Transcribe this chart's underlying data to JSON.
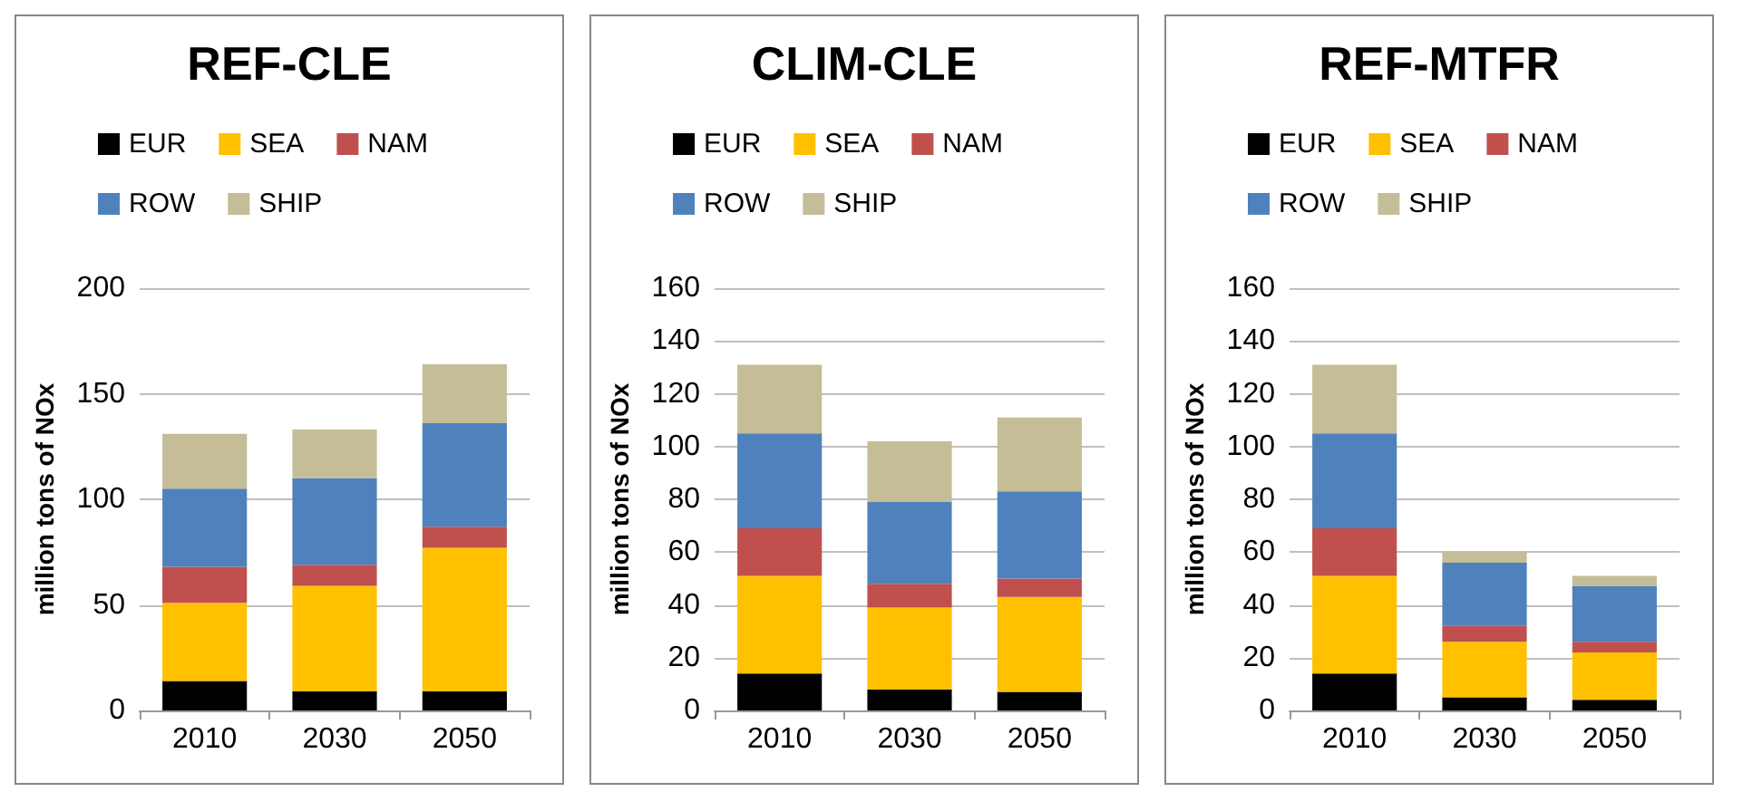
{
  "chart_data": [
    {
      "type": "bar",
      "title": "REF-CLE",
      "ylabel": "million tons of NOx",
      "categories": [
        "2010",
        "2030",
        "2050"
      ],
      "stacked": true,
      "ylim": [
        0,
        200
      ],
      "yticks": [
        0,
        50,
        100,
        150,
        200
      ],
      "grid": "y",
      "legend": "top",
      "series": [
        {
          "name": "EUR",
          "color": "#000000",
          "values": [
            14,
            9,
            9
          ]
        },
        {
          "name": "SEA",
          "color": "#ffc000",
          "values": [
            37,
            50,
            68
          ]
        },
        {
          "name": "NAM",
          "color": "#c0504d",
          "values": [
            17,
            10,
            10
          ]
        },
        {
          "name": "ROW",
          "color": "#4f81bd",
          "values": [
            37,
            41,
            49
          ]
        },
        {
          "name": "SHIP",
          "color": "#c4bd97",
          "values": [
            26,
            23,
            28
          ]
        }
      ]
    },
    {
      "type": "bar",
      "title": "CLIM-CLE",
      "ylabel": "million tons of NOx",
      "categories": [
        "2010",
        "2030",
        "2050"
      ],
      "stacked": true,
      "ylim": [
        0,
        160
      ],
      "yticks": [
        0,
        20,
        40,
        60,
        80,
        100,
        120,
        140,
        160
      ],
      "grid": "y",
      "legend": "top",
      "series": [
        {
          "name": "EUR",
          "color": "#000000",
          "values": [
            14,
            8,
            7
          ]
        },
        {
          "name": "SEA",
          "color": "#ffc000",
          "values": [
            37,
            31,
            36
          ]
        },
        {
          "name": "NAM",
          "color": "#c0504d",
          "values": [
            18,
            9,
            7
          ]
        },
        {
          "name": "ROW",
          "color": "#4f81bd",
          "values": [
            36,
            31,
            33
          ]
        },
        {
          "name": "SHIP",
          "color": "#c4bd97",
          "values": [
            26,
            23,
            28
          ]
        }
      ]
    },
    {
      "type": "bar",
      "title": "REF-MTFR",
      "ylabel": "million tons of NOx",
      "categories": [
        "2010",
        "2030",
        "2050"
      ],
      "stacked": true,
      "ylim": [
        0,
        160
      ],
      "yticks": [
        0,
        20,
        40,
        60,
        80,
        100,
        120,
        140,
        160
      ],
      "grid": "y",
      "legend": "top",
      "series": [
        {
          "name": "EUR",
          "color": "#000000",
          "values": [
            14,
            5,
            4
          ]
        },
        {
          "name": "SEA",
          "color": "#ffc000",
          "values": [
            37,
            21,
            18
          ]
        },
        {
          "name": "NAM",
          "color": "#c0504d",
          "values": [
            18,
            6,
            4
          ]
        },
        {
          "name": "ROW",
          "color": "#4f81bd",
          "values": [
            36,
            24,
            21
          ]
        },
        {
          "name": "SHIP",
          "color": "#c4bd97",
          "values": [
            26,
            4,
            4
          ]
        }
      ]
    }
  ]
}
